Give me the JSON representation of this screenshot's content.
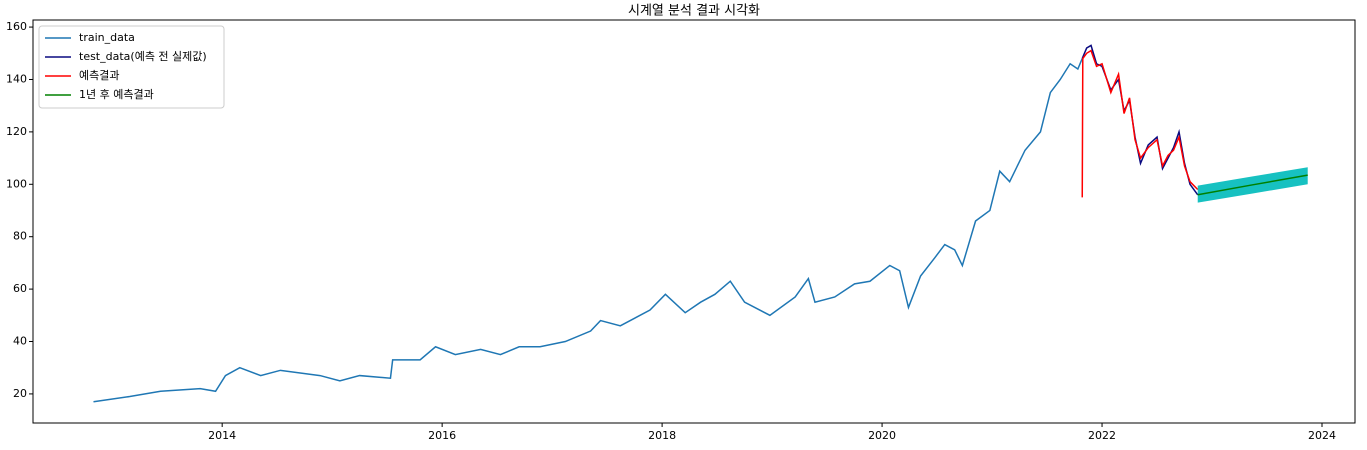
{
  "chart_data": {
    "type": "line",
    "title": "시계열 분석 결과 시각화",
    "xlim": [
      2012.28,
      2024.3
    ],
    "xticks": [
      2014,
      2016,
      2018,
      2020,
      2022,
      2024
    ],
    "ylim": [
      8.9,
      162.7
    ],
    "yticks": [
      20,
      40,
      60,
      80,
      100,
      120,
      140,
      160
    ],
    "legend": "upper left",
    "series": [
      {
        "name": "train_data",
        "color": "#1f77b4",
        "x": [
          2012.83,
          2013.16,
          2013.44,
          2013.8,
          2013.94,
          2014.03,
          2014.16,
          2014.35,
          2014.53,
          2014.89,
          2015.07,
          2015.25,
          2015.53,
          2015.55,
          2015.8,
          2015.94,
          2016.12,
          2016.35,
          2016.53,
          2016.7,
          2016.89,
          2017.12,
          2017.35,
          2017.44,
          2017.62,
          2017.89,
          2018.03,
          2018.21,
          2018.35,
          2018.48,
          2018.62,
          2018.75,
          2018.98,
          2019.21,
          2019.33,
          2019.39,
          2019.57,
          2019.75,
          2019.89,
          2020.07,
          2020.16,
          2020.24,
          2020.35,
          2020.48,
          2020.57,
          2020.66,
          2020.73,
          2020.85,
          2020.98,
          2021.07,
          2021.16,
          2021.3,
          2021.44,
          2021.53,
          2021.62,
          2021.71,
          2021.78,
          2021.82
        ],
        "values": [
          17,
          19,
          21,
          22,
          21,
          27,
          30,
          27,
          29,
          27,
          25,
          27,
          26,
          33,
          33,
          38,
          35,
          37,
          35,
          38,
          38,
          40,
          44,
          48,
          46,
          52,
          58,
          51,
          55,
          58,
          63,
          55,
          50,
          57,
          64,
          55,
          57,
          62,
          63,
          69,
          67,
          53,
          65,
          72,
          77,
          75,
          69,
          86,
          90,
          105,
          101,
          113,
          120,
          135,
          140,
          146,
          144,
          148
        ]
      },
      {
        "name": "test_data(예측 전 실제값)",
        "color": "#0a0a80",
        "x": [
          2021.82,
          2021.86,
          2021.9,
          2021.95,
          2022.0,
          2022.08,
          2022.15,
          2022.2,
          2022.25,
          2022.3,
          2022.35,
          2022.42,
          2022.5,
          2022.55,
          2022.6,
          2022.65,
          2022.7,
          2022.75,
          2022.8,
          2022.87
        ],
        "values": [
          148,
          152,
          153,
          146,
          145,
          136,
          140,
          128,
          132,
          118,
          108,
          115,
          118,
          106,
          110,
          114,
          120,
          108,
          100,
          96
        ]
      },
      {
        "name": "예측결과",
        "color": "#ff0000",
        "x": [
          2021.82,
          2021.825,
          2021.86,
          2021.9,
          2021.95,
          2022.0,
          2022.08,
          2022.15,
          2022.2,
          2022.25,
          2022.3,
          2022.35,
          2022.42,
          2022.5,
          2022.55,
          2022.6,
          2022.65,
          2022.7,
          2022.75,
          2022.8,
          2022.87
        ],
        "values": [
          95,
          148,
          150,
          151,
          145,
          146,
          135,
          142,
          127,
          133,
          117,
          110,
          114,
          117,
          107,
          111,
          113,
          118,
          107,
          101,
          98
        ]
      },
      {
        "name": "1년 후 예측결과",
        "color": "#008000",
        "x": [
          2022.87,
          2023.37,
          2023.87
        ],
        "values": [
          96,
          99.8,
          103.5
        ],
        "interval": {
          "color": "#17c1c1",
          "lower": [
            93,
            96.5,
            100
          ],
          "upper": [
            99.5,
            103,
            106.5
          ]
        }
      }
    ]
  }
}
